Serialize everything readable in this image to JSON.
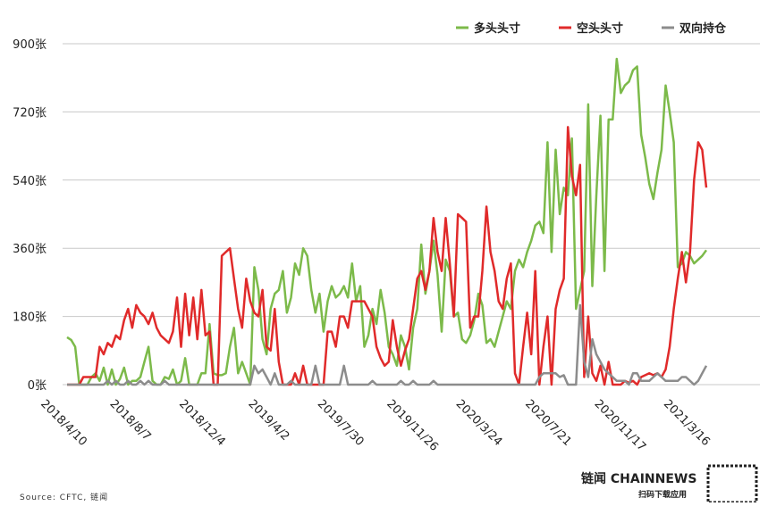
{
  "chart_data": {
    "type": "line",
    "source": "Source: CFTC, 链闻",
    "brand": "链闻 CHAINNEWS",
    "brand_caption": "扫码下载应用",
    "legend": "top-right",
    "grid": true,
    "categories": [
      "2018/4/10",
      null,
      null,
      null,
      null,
      null,
      null,
      null,
      null,
      null,
      null,
      null,
      null,
      null,
      null,
      null,
      null,
      "2018/8/7",
      null,
      null,
      null,
      null,
      null,
      null,
      null,
      null,
      null,
      null,
      null,
      null,
      null,
      null,
      null,
      null,
      "2018/12/4",
      null,
      null,
      null,
      null,
      null,
      null,
      null,
      null,
      null,
      null,
      null,
      null,
      null,
      null,
      null,
      null,
      "2019/4/2",
      null,
      null,
      null,
      null,
      null,
      null,
      null,
      null,
      null,
      null,
      null,
      null,
      null,
      null,
      null,
      null,
      "2019/7/30",
      null,
      null,
      null,
      null,
      null,
      null,
      null,
      null,
      null,
      null,
      null,
      null,
      null,
      null,
      null,
      null,
      "2019/11/26",
      null,
      null,
      null,
      null,
      null,
      null,
      null,
      null,
      null,
      null,
      null,
      null,
      null,
      null,
      null,
      null,
      "2020/3/24",
      null,
      null,
      null,
      null,
      null,
      null,
      null,
      null,
      null,
      null,
      null,
      null,
      null,
      null,
      null,
      null,
      "2020/7/21",
      null,
      null,
      null,
      null,
      null,
      null,
      null,
      null,
      null,
      null,
      null,
      null,
      null,
      null,
      null,
      null,
      "2020/11/17",
      null,
      null,
      null,
      null,
      null,
      null,
      null,
      null,
      null,
      null,
      null,
      null,
      null,
      null,
      null,
      null,
      "2021/3/16",
      null,
      null,
      null,
      null
    ],
    "ylim": [
      0,
      900
    ],
    "yticks": [
      {
        "value": 0,
        "label": "0张"
      },
      {
        "value": 180,
        "label": "180张"
      },
      {
        "value": 360,
        "label": "360张"
      },
      {
        "value": 540,
        "label": "540张"
      },
      {
        "value": 720,
        "label": "720张"
      },
      {
        "value": 900,
        "label": "900张"
      }
    ],
    "series": [
      {
        "name": "多头头寸",
        "color": "#7cba4a",
        "values": [
          125,
          118,
          100,
          0,
          0,
          0,
          20,
          30,
          10,
          45,
          0,
          40,
          0,
          15,
          45,
          0,
          10,
          10,
          20,
          60,
          100,
          10,
          0,
          0,
          20,
          15,
          40,
          0,
          10,
          70,
          0,
          0,
          0,
          30,
          30,
          160,
          30,
          25,
          25,
          30,
          100,
          150,
          30,
          60,
          30,
          0,
          310,
          250,
          120,
          80,
          200,
          240,
          250,
          300,
          190,
          230,
          320,
          290,
          360,
          340,
          250,
          190,
          240,
          140,
          220,
          260,
          230,
          240,
          260,
          230,
          320,
          220,
          260,
          100,
          130,
          200,
          160,
          250,
          190,
          100,
          80,
          50,
          130,
          100,
          40,
          150,
          200,
          370,
          240,
          300,
          380,
          290,
          140,
          330,
          300,
          180,
          190,
          120,
          110,
          130,
          170,
          240,
          210,
          110,
          120,
          100,
          140,
          180,
          220,
          200,
          300,
          330,
          310,
          350,
          380,
          420,
          430,
          400,
          640,
          350,
          620,
          450,
          520,
          500,
          650,
          200,
          250,
          300,
          740,
          260,
          500,
          710,
          300,
          700,
          700,
          860,
          770,
          790,
          800,
          830,
          840,
          660,
          600,
          530,
          490,
          560,
          620,
          790,
          720,
          640,
          310,
          320,
          350,
          340,
          320,
          330,
          340,
          355
        ]
      },
      {
        "name": "空头头寸",
        "color": "#e02a2a",
        "values": [
          0,
          0,
          0,
          0,
          20,
          20,
          20,
          20,
          100,
          80,
          110,
          100,
          130,
          120,
          170,
          200,
          150,
          210,
          190,
          180,
          160,
          190,
          150,
          130,
          120,
          110,
          140,
          230,
          100,
          240,
          130,
          230,
          120,
          250,
          130,
          140,
          0,
          0,
          340,
          350,
          360,
          280,
          200,
          150,
          280,
          220,
          190,
          180,
          250,
          100,
          90,
          200,
          60,
          0,
          0,
          0,
          30,
          0,
          50,
          0,
          0,
          0,
          0,
          0,
          140,
          140,
          100,
          180,
          180,
          150,
          220,
          220,
          220,
          220,
          200,
          180,
          100,
          70,
          50,
          60,
          170,
          100,
          50,
          90,
          120,
          200,
          280,
          300,
          250,
          300,
          440,
          350,
          300,
          440,
          320,
          180,
          450,
          440,
          430,
          150,
          180,
          180,
          300,
          470,
          350,
          300,
          220,
          200,
          280,
          320,
          30,
          0,
          100,
          190,
          80,
          300,
          0,
          100,
          180,
          0,
          200,
          250,
          280,
          680,
          550,
          500,
          580,
          20,
          180,
          30,
          10,
          50,
          0,
          60,
          0,
          0,
          0,
          10,
          5,
          10,
          0,
          20,
          25,
          30,
          25,
          30,
          20,
          40,
          100,
          200,
          280,
          350,
          270,
          350,
          540,
          640,
          620,
          520
        ]
      },
      {
        "name": "双向持仓",
        "color": "#8c8c8c",
        "values": [
          0,
          0,
          0,
          0,
          0,
          0,
          0,
          0,
          0,
          0,
          10,
          0,
          10,
          0,
          0,
          10,
          0,
          0,
          10,
          0,
          10,
          0,
          0,
          0,
          10,
          0,
          0,
          0,
          0,
          0,
          0,
          0,
          0,
          0,
          0,
          0,
          0,
          0,
          0,
          0,
          0,
          0,
          0,
          0,
          0,
          0,
          50,
          30,
          40,
          20,
          0,
          30,
          0,
          0,
          0,
          10,
          0,
          0,
          0,
          0,
          0,
          50,
          0,
          0,
          0,
          0,
          0,
          0,
          50,
          0,
          0,
          0,
          0,
          0,
          0,
          10,
          0,
          0,
          0,
          0,
          0,
          0,
          10,
          0,
          0,
          10,
          0,
          0,
          0,
          0,
          10,
          0,
          0,
          0,
          0,
          0,
          0,
          0,
          0,
          0,
          0,
          0,
          0,
          0,
          0,
          0,
          0,
          0,
          0,
          0,
          0,
          0,
          0,
          0,
          0,
          0,
          20,
          30,
          30,
          30,
          30,
          20,
          25,
          0,
          0,
          0,
          210,
          60,
          20,
          120,
          80,
          60,
          40,
          30,
          20,
          10,
          10,
          10,
          0,
          30,
          30,
          10,
          10,
          10,
          20,
          30,
          20,
          10,
          10,
          10,
          10,
          20,
          20,
          10,
          0,
          10,
          30,
          50
        ]
      }
    ]
  }
}
